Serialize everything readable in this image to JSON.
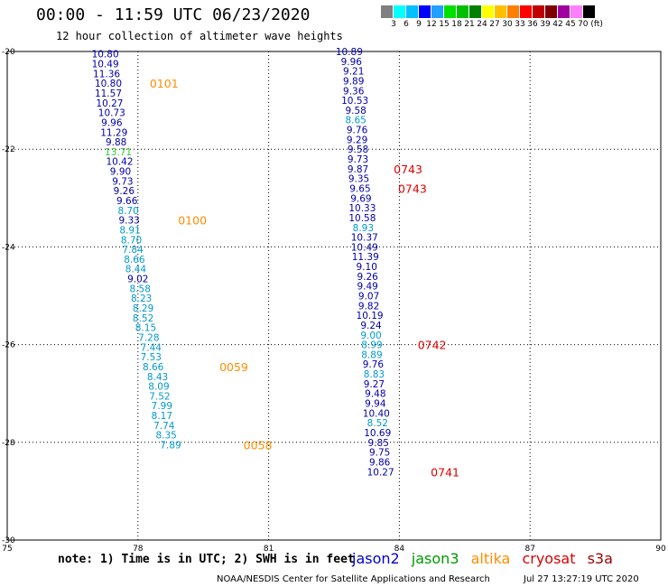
{
  "header": {
    "title": "00:00 - 11:59 UTC 06/23/2020",
    "subtitle": "12 hour collection of altimeter wave heights"
  },
  "colorbar": {
    "colors": [
      "#808080",
      "#00ffff",
      "#00c0ff",
      "#0000ff",
      "#20a0ff",
      "#00e000",
      "#00c000",
      "#008000",
      "#ffff00",
      "#ffc000",
      "#ff8000",
      "#ff0000",
      "#c00000",
      "#800000",
      "#a000a0",
      "#ff80ff",
      "#000000"
    ],
    "labels": [
      "3",
      "6",
      "9",
      "12",
      "15",
      "18",
      "21",
      "24",
      "27",
      "30",
      "33",
      "36",
      "39",
      "42",
      "45",
      "70 (ft)"
    ]
  },
  "map": {
    "lon_ticks": [
      "75",
      "78",
      "81",
      "84",
      "87",
      "90"
    ],
    "lat_ticks": [
      "-20",
      "-22",
      "-24",
      "-26",
      "-28",
      "-30"
    ]
  },
  "swh": [
    {
      "v": "10.80",
      "c": "#0000aa",
      "lon": 77.25,
      "lat": -20.05
    },
    {
      "v": "10.49",
      "c": "#0000aa",
      "lon": 77.25,
      "lat": -20.25
    },
    {
      "v": "11.36",
      "c": "#0000aa",
      "lon": 77.28,
      "lat": -20.45
    },
    {
      "v": "10.80",
      "c": "#0000aa",
      "lon": 77.32,
      "lat": -20.65
    },
    {
      "v": "11.57",
      "c": "#0000aa",
      "lon": 77.32,
      "lat": -20.85
    },
    {
      "v": "10.27",
      "c": "#0000aa",
      "lon": 77.35,
      "lat": -21.05
    },
    {
      "v": "10.73",
      "c": "#0000aa",
      "lon": 77.4,
      "lat": -21.25
    },
    {
      "v": "9.96",
      "c": "#0000aa",
      "lon": 77.4,
      "lat": -21.45
    },
    {
      "v": "11.29",
      "c": "#0000aa",
      "lon": 77.45,
      "lat": -21.65
    },
    {
      "v": "9.88",
      "c": "#0000aa",
      "lon": 77.5,
      "lat": -21.85
    },
    {
      "v": "13.71",
      "c": "#33cc33",
      "lon": 77.55,
      "lat": -22.05
    },
    {
      "v": "10.42",
      "c": "#0000aa",
      "lon": 77.58,
      "lat": -22.25
    },
    {
      "v": "9.90",
      "c": "#0000aa",
      "lon": 77.6,
      "lat": -22.45
    },
    {
      "v": "9.73",
      "c": "#0000aa",
      "lon": 77.65,
      "lat": -22.65
    },
    {
      "v": "9.26",
      "c": "#0000aa",
      "lon": 77.68,
      "lat": -22.85
    },
    {
      "v": "9.66",
      "c": "#0000aa",
      "lon": 77.75,
      "lat": -23.05
    },
    {
      "v": "8.70",
      "c": "#0099cc",
      "lon": 77.78,
      "lat": -23.25
    },
    {
      "v": "9.33",
      "c": "#0000aa",
      "lon": 77.8,
      "lat": -23.45
    },
    {
      "v": "8.91",
      "c": "#0099cc",
      "lon": 77.82,
      "lat": -23.65
    },
    {
      "v": "8.70",
      "c": "#0099cc",
      "lon": 77.85,
      "lat": -23.85
    },
    {
      "v": "7.84",
      "c": "#0099cc",
      "lon": 77.88,
      "lat": -24.05
    },
    {
      "v": "8.66",
      "c": "#0099cc",
      "lon": 77.92,
      "lat": -24.25
    },
    {
      "v": "8.44",
      "c": "#0099cc",
      "lon": 77.95,
      "lat": -24.45
    },
    {
      "v": "9.02",
      "c": "#0000aa",
      "lon": 78,
      "lat": -24.65
    },
    {
      "v": "8.58",
      "c": "#0099cc",
      "lon": 78.05,
      "lat": -24.85
    },
    {
      "v": "8.23",
      "c": "#0099cc",
      "lon": 78.08,
      "lat": -25.05
    },
    {
      "v": "8.29",
      "c": "#0099cc",
      "lon": 78.12,
      "lat": -25.25
    },
    {
      "v": "8.52",
      "c": "#0099cc",
      "lon": 78.12,
      "lat": -25.45
    },
    {
      "v": "8.15",
      "c": "#0099cc",
      "lon": 78.18,
      "lat": -25.65
    },
    {
      "v": "7.28",
      "c": "#0099cc",
      "lon": 78.25,
      "lat": -25.85
    },
    {
      "v": "7.44",
      "c": "#0099cc",
      "lon": 78.3,
      "lat": -26.05
    },
    {
      "v": "7.53",
      "c": "#0099cc",
      "lon": 78.3,
      "lat": -26.25
    },
    {
      "v": "8.66",
      "c": "#0099cc",
      "lon": 78.35,
      "lat": -26.45
    },
    {
      "v": "8.43",
      "c": "#0099cc",
      "lon": 78.45,
      "lat": -26.65
    },
    {
      "v": "8.09",
      "c": "#0099cc",
      "lon": 78.48,
      "lat": -26.85
    },
    {
      "v": "7.52",
      "c": "#0099cc",
      "lon": 78.5,
      "lat": -27.05
    },
    {
      "v": "7.99",
      "c": "#0099cc",
      "lon": 78.55,
      "lat": -27.25
    },
    {
      "v": "8.17",
      "c": "#0099cc",
      "lon": 78.55,
      "lat": -27.45
    },
    {
      "v": "7.74",
      "c": "#0099cc",
      "lon": 78.6,
      "lat": -27.65
    },
    {
      "v": "8.35",
      "c": "#0099cc",
      "lon": 78.65,
      "lat": -27.85
    },
    {
      "v": "7.89",
      "c": "#0099cc",
      "lon": 78.75,
      "lat": -28.05
    },
    {
      "v": "10.89",
      "c": "#0000aa",
      "lon": 82.85,
      "lat": -20.0
    },
    {
      "v": "9.96",
      "c": "#0000aa",
      "lon": 82.9,
      "lat": -20.2
    },
    {
      "v": "9.21",
      "c": "#0000aa",
      "lon": 82.95,
      "lat": -20.4
    },
    {
      "v": "9.89",
      "c": "#0000aa",
      "lon": 82.95,
      "lat": -20.6
    },
    {
      "v": "9.36",
      "c": "#0000aa",
      "lon": 82.95,
      "lat": -20.8
    },
    {
      "v": "10.53",
      "c": "#0000aa",
      "lon": 82.98,
      "lat": -21.0
    },
    {
      "v": "9.58",
      "c": "#0000aa",
      "lon": 83.0,
      "lat": -21.2
    },
    {
      "v": "8.65",
      "c": "#0099cc",
      "lon": 83.0,
      "lat": -21.4
    },
    {
      "v": "9.76",
      "c": "#0000aa",
      "lon": 83.03,
      "lat": -21.6
    },
    {
      "v": "9.29",
      "c": "#0000aa",
      "lon": 83.03,
      "lat": -21.8
    },
    {
      "v": "9.58",
      "c": "#0000aa",
      "lon": 83.05,
      "lat": -22.0
    },
    {
      "v": "9.73",
      "c": "#0000aa",
      "lon": 83.05,
      "lat": -22.2
    },
    {
      "v": "9.87",
      "c": "#0000aa",
      "lon": 83.05,
      "lat": -22.4
    },
    {
      "v": "9.35",
      "c": "#0000aa",
      "lon": 83.07,
      "lat": -22.6
    },
    {
      "v": "9.65",
      "c": "#0000aa",
      "lon": 83.1,
      "lat": -22.8
    },
    {
      "v": "9.69",
      "c": "#0000aa",
      "lon": 83.12,
      "lat": -23.0
    },
    {
      "v": "10.33",
      "c": "#0000aa",
      "lon": 83.15,
      "lat": -23.2
    },
    {
      "v": "10.58",
      "c": "#0000aa",
      "lon": 83.15,
      "lat": -23.4
    },
    {
      "v": "8.93",
      "c": "#0099cc",
      "lon": 83.17,
      "lat": -23.6
    },
    {
      "v": "10.37",
      "c": "#0000aa",
      "lon": 83.2,
      "lat": -23.8
    },
    {
      "v": "10.49",
      "c": "#0000aa",
      "lon": 83.2,
      "lat": -24.0
    },
    {
      "v": "11.39",
      "c": "#0000aa",
      "lon": 83.22,
      "lat": -24.2
    },
    {
      "v": "9.10",
      "c": "#0000aa",
      "lon": 83.25,
      "lat": -24.4
    },
    {
      "v": "9.26",
      "c": "#0000aa",
      "lon": 83.27,
      "lat": -24.6
    },
    {
      "v": "9.49",
      "c": "#0000aa",
      "lon": 83.27,
      "lat": -24.8
    },
    {
      "v": "9.07",
      "c": "#0000aa",
      "lon": 83.3,
      "lat": -25.0
    },
    {
      "v": "9.82",
      "c": "#0000aa",
      "lon": 83.3,
      "lat": -25.2
    },
    {
      "v": "10.19",
      "c": "#0000aa",
      "lon": 83.32,
      "lat": -25.4
    },
    {
      "v": "9.24",
      "c": "#0000aa",
      "lon": 83.35,
      "lat": -25.6
    },
    {
      "v": "9.00",
      "c": "#0099cc",
      "lon": 83.35,
      "lat": -25.8
    },
    {
      "v": "8.99",
      "c": "#0099cc",
      "lon": 83.37,
      "lat": -26.0
    },
    {
      "v": "8.89",
      "c": "#0099cc",
      "lon": 83.37,
      "lat": -26.2
    },
    {
      "v": "9.76",
      "c": "#0000aa",
      "lon": 83.4,
      "lat": -26.4
    },
    {
      "v": "8.83",
      "c": "#0099cc",
      "lon": 83.42,
      "lat": -26.6
    },
    {
      "v": "9.27",
      "c": "#0000aa",
      "lon": 83.42,
      "lat": -26.8
    },
    {
      "v": "9.48",
      "c": "#0000aa",
      "lon": 83.45,
      "lat": -27.0
    },
    {
      "v": "9.94",
      "c": "#0000aa",
      "lon": 83.45,
      "lat": -27.2
    },
    {
      "v": "10.40",
      "c": "#0000aa",
      "lon": 83.47,
      "lat": -27.4
    },
    {
      "v": "8.52",
      "c": "#0099cc",
      "lon": 83.5,
      "lat": -27.6
    },
    {
      "v": "10.69",
      "c": "#0000aa",
      "lon": 83.5,
      "lat": -27.8
    },
    {
      "v": "9.85",
      "c": "#0000aa",
      "lon": 83.52,
      "lat": -28.0
    },
    {
      "v": "9.75",
      "c": "#0000aa",
      "lon": 83.55,
      "lat": -28.2
    },
    {
      "v": "9.86",
      "c": "#0000aa",
      "lon": 83.55,
      "lat": -28.4
    },
    {
      "v": "10.27",
      "c": "#0000aa",
      "lon": 83.57,
      "lat": -28.6
    }
  ],
  "times": [
    {
      "t": "0101",
      "c": "#ff8c00",
      "lon": 78.6,
      "lat": -20.65
    },
    {
      "t": "0100",
      "c": "#ff8c00",
      "lon": 79.25,
      "lat": -23.45
    },
    {
      "t": "0059",
      "c": "#ff8c00",
      "lon": 80.2,
      "lat": -26.45
    },
    {
      "t": "0058",
      "c": "#ff8c00",
      "lon": 80.75,
      "lat": -28.05
    },
    {
      "t": "0743",
      "c": "#dd0000",
      "lon": 84.2,
      "lat": -22.4
    },
    {
      "t": "0743",
      "c": "#dd0000",
      "lon": 84.3,
      "lat": -22.8
    },
    {
      "t": "0742",
      "c": "#dd0000",
      "lon": 84.75,
      "lat": -26.0
    },
    {
      "t": "0741",
      "c": "#dd0000",
      "lon": 85.05,
      "lat": -28.6
    }
  ],
  "legend": {
    "jason2": {
      "label": "jason2",
      "color": "#0000cc"
    },
    "jason3": {
      "label": "jason3",
      "color": "#009900"
    },
    "altika": {
      "label": "altika",
      "color": "#ff8c00"
    },
    "cryosat": {
      "label": "cryosat",
      "color": "#dd0000"
    },
    "s3a": {
      "label": "s3a",
      "color": "#990000"
    }
  },
  "footer": {
    "note": "note: 1) Time is in UTC; 2) SWH is in feet",
    "credit": "NOAA/NESDIS Center for Satellite Applications and Research",
    "generated": "Jul 27 13:27:19 UTC 2020"
  }
}
